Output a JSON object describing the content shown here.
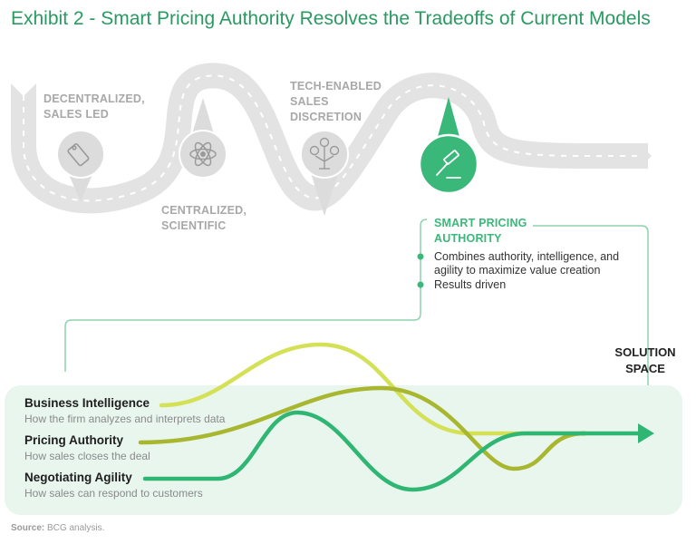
{
  "title": "Exhibit 2 - Smart Pricing Authority Resolves the Tradeoffs of Current Models",
  "road_stops": [
    {
      "label_lines": [
        "DECENTRALIZED,",
        "SALES LED"
      ],
      "icon": "price-tag-icon"
    },
    {
      "label_lines": [
        "CENTRALIZED,",
        "SCIENTIFIC"
      ],
      "icon": "atom-icon"
    },
    {
      "label_lines": [
        "TECH-ENABLED",
        "SALES",
        "DISCRETION"
      ],
      "icon": "dollar-tree-icon"
    }
  ],
  "smart_pricing": {
    "label_lines": [
      "SMART PRICING",
      "AUTHORITY"
    ],
    "icon": "gavel-icon",
    "bullets": [
      {
        "lines": [
          "Combines authority, intelligence, and",
          "agility to maximize value creation"
        ]
      },
      {
        "lines": [
          "Results driven"
        ]
      }
    ]
  },
  "solution_space": {
    "lines": [
      "SOLUTION",
      "SPACE"
    ]
  },
  "legend": [
    {
      "title": "Business Intelligence",
      "description": "How the firm analyzes and interprets data",
      "color": "#d4e157"
    },
    {
      "title": "Pricing Authority",
      "description": "How sales closes the deal",
      "color": "#a9b62f"
    },
    {
      "title": "Negotiating Agility",
      "description": "How sales can respond to customers",
      "color": "#2fb673"
    }
  ],
  "source": {
    "label": "Source:",
    "text": "BCG analysis."
  },
  "colors": {
    "brand_green": "#2a9a62",
    "accent_green": "#3ab87a",
    "road_gray": "#e3e3e3",
    "panel_bg": "#e8f6ee"
  }
}
